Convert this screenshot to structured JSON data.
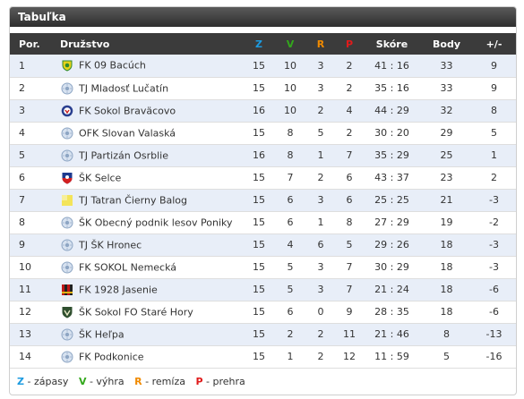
{
  "widget": {
    "title": "Tabuľka"
  },
  "colors": {
    "z": "#1c9be0",
    "v": "#33a81c",
    "r": "#f08a00",
    "p": "#e01b1b"
  },
  "columns": {
    "pos": "Por.",
    "team": "Družstvo",
    "z": "Z",
    "v": "V",
    "r": "R",
    "p": "P",
    "score": "Skóre",
    "points": "Body",
    "diff": "+/-"
  },
  "rows": [
    {
      "pos": "1",
      "team": "FK 09 Bacúch",
      "z": "15",
      "v": "10",
      "r": "3",
      "p": "2",
      "score": "41 : 16",
      "points": "33",
      "diff": "9",
      "crest": "yellow-green-crest-icon"
    },
    {
      "pos": "2",
      "team": "TJ Mladosť Lučatín",
      "z": "15",
      "v": "10",
      "r": "3",
      "p": "2",
      "score": "35 : 16",
      "points": "33",
      "diff": "9",
      "crest": "generic-ball-icon"
    },
    {
      "pos": "3",
      "team": "FK Sokol Braväcovo",
      "z": "16",
      "v": "10",
      "r": "2",
      "p": "4",
      "score": "44 : 29",
      "points": "32",
      "diff": "8",
      "crest": "blue-round-crest-icon"
    },
    {
      "pos": "4",
      "team": "OFK Slovan Valaská",
      "z": "15",
      "v": "8",
      "r": "5",
      "p": "2",
      "score": "30 : 20",
      "points": "29",
      "diff": "5",
      "crest": "generic-ball-icon"
    },
    {
      "pos": "5",
      "team": "TJ Partizán Osrblie",
      "z": "16",
      "v": "8",
      "r": "1",
      "p": "7",
      "score": "35 : 29",
      "points": "25",
      "diff": "1",
      "crest": "generic-ball-icon"
    },
    {
      "pos": "6",
      "team": "ŠK Selce",
      "z": "15",
      "v": "7",
      "r": "2",
      "p": "6",
      "score": "43 : 37",
      "points": "23",
      "diff": "2",
      "crest": "blue-red-shield-icon"
    },
    {
      "pos": "7",
      "team": "TJ Tatran Čierny Balog",
      "z": "15",
      "v": "6",
      "r": "3",
      "p": "6",
      "score": "25 : 25",
      "points": "21",
      "diff": "-3",
      "crest": "yellow-flag-crest-icon"
    },
    {
      "pos": "8",
      "team": "ŠK Obecný podnik lesov Poniky",
      "z": "15",
      "v": "6",
      "r": "1",
      "p": "8",
      "score": "27 : 29",
      "points": "19",
      "diff": "-2",
      "crest": "generic-ball-icon"
    },
    {
      "pos": "9",
      "team": "TJ ŠK Hronec",
      "z": "15",
      "v": "4",
      "r": "6",
      "p": "5",
      "score": "29 : 26",
      "points": "18",
      "diff": "-3",
      "crest": "generic-ball-icon"
    },
    {
      "pos": "10",
      "team": "FK SOKOL Nemecká",
      "z": "15",
      "v": "5",
      "r": "3",
      "p": "7",
      "score": "30 : 29",
      "points": "18",
      "diff": "-3",
      "crest": "generic-ball-icon"
    },
    {
      "pos": "11",
      "team": "FK 1928 Jasenie",
      "z": "15",
      "v": "5",
      "r": "3",
      "p": "7",
      "score": "21 : 24",
      "points": "18",
      "diff": "-6",
      "crest": "red-black-stripes-crest-icon"
    },
    {
      "pos": "12",
      "team": "ŠK Sokol FO Staré Hory",
      "z": "15",
      "v": "6",
      "r": "0",
      "p": "9",
      "score": "28 : 35",
      "points": "18",
      "diff": "-6",
      "crest": "dark-green-crest-icon"
    },
    {
      "pos": "13",
      "team": "ŠK Heľpa",
      "z": "15",
      "v": "2",
      "r": "2",
      "p": "11",
      "score": "21 : 46",
      "points": "8",
      "diff": "-13",
      "crest": "generic-ball-icon"
    },
    {
      "pos": "14",
      "team": "FK Podkonice",
      "z": "15",
      "v": "1",
      "r": "2",
      "p": "12",
      "score": "11 : 59",
      "points": "5",
      "diff": "-16",
      "crest": "generic-ball-icon"
    }
  ],
  "legend": {
    "z_key": "Z",
    "z_text": " - zápasy",
    "v_key": "V",
    "v_text": " - výhra",
    "r_key": "R",
    "r_text": " - remíza",
    "p_key": "P",
    "p_text": " - prehra"
  }
}
